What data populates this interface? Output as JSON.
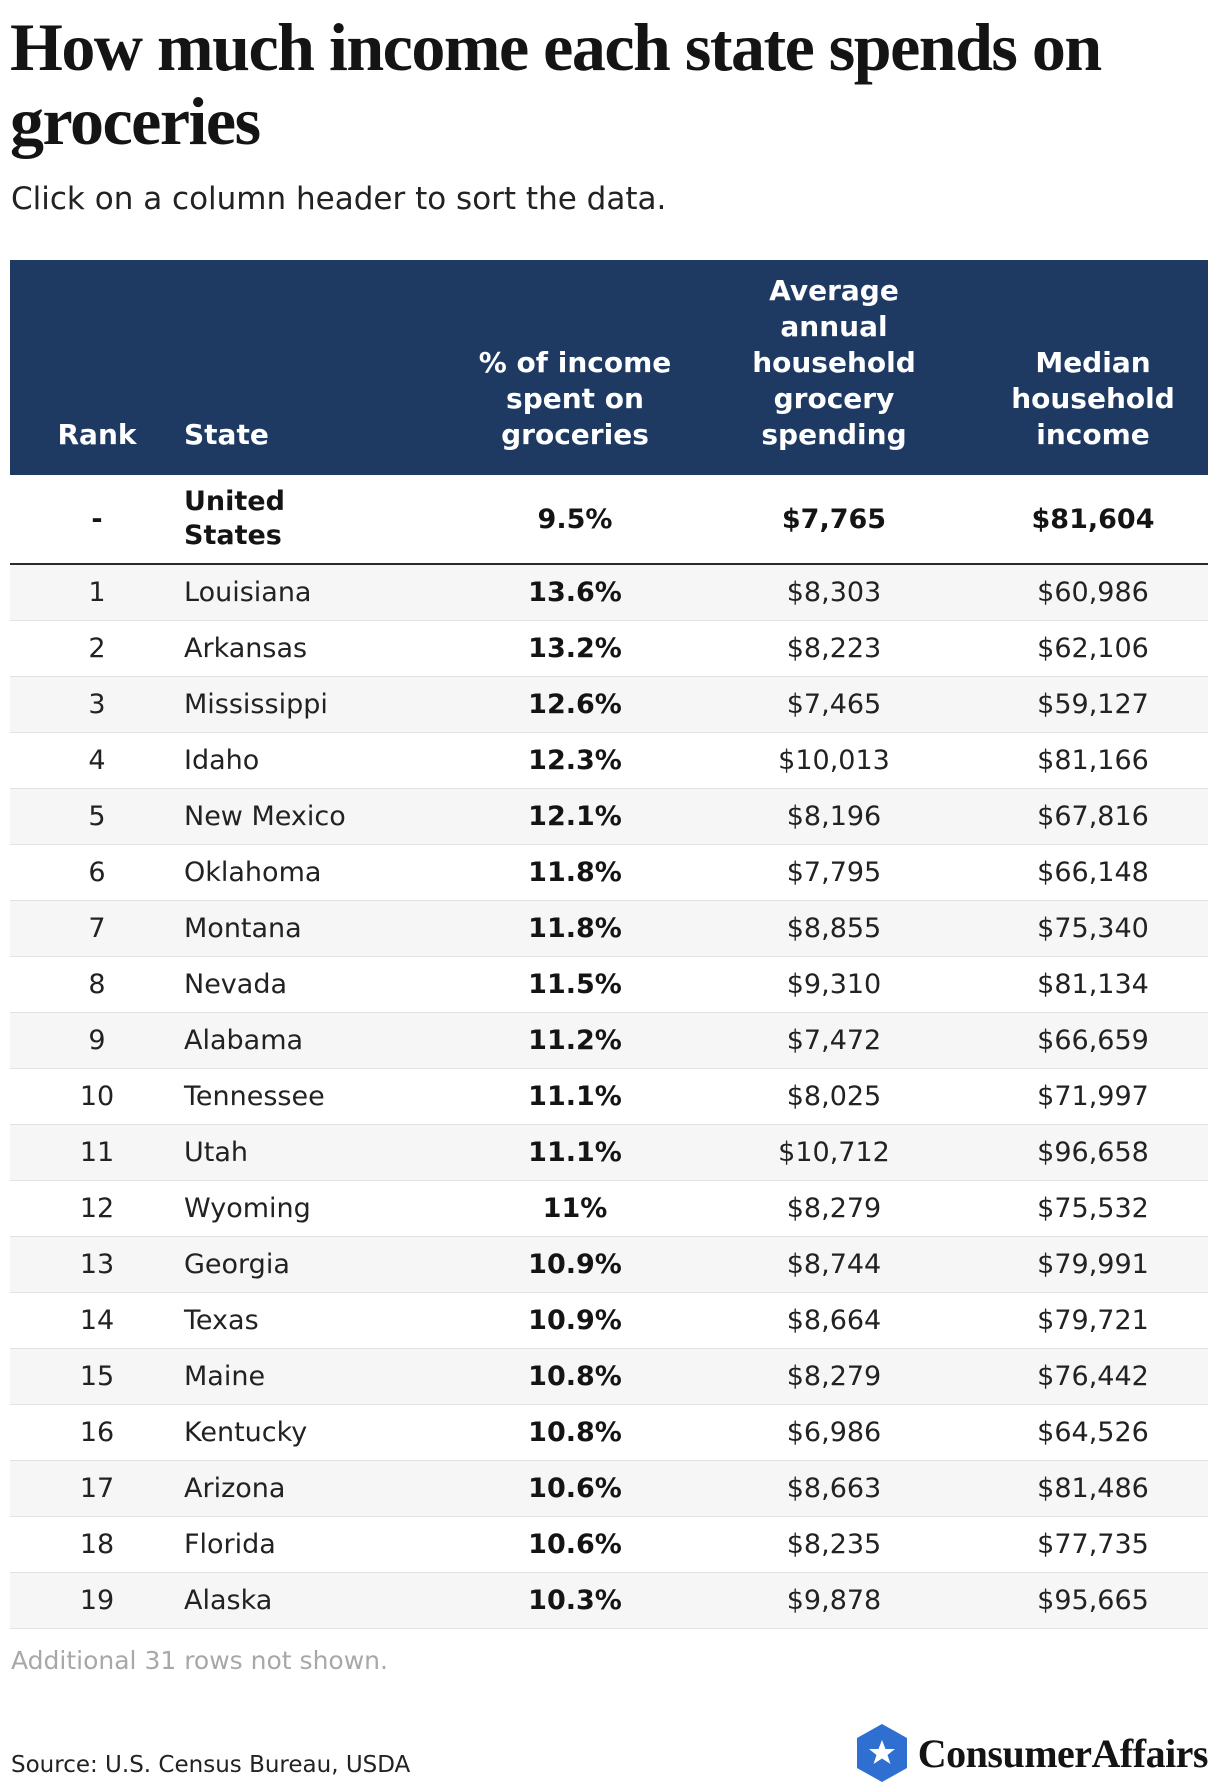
{
  "header": {
    "title": "How much income each state spends on groceries",
    "subtitle": "Click on a column header to sort the data."
  },
  "table": {
    "columns": {
      "rank": "Rank",
      "state": "State",
      "pct": "% of income\nspent on\ngroceries",
      "avg": "Average\nannual\nhousehold\ngrocery\nspending",
      "median": "Median\nhousehold\nincome"
    },
    "us_row": {
      "rank": "-",
      "state": "United\nStates",
      "pct": "9.5%",
      "avg": "$7,765",
      "median": "$81,604"
    },
    "rows": [
      {
        "rank": "1",
        "state": "Louisiana",
        "pct": "13.6%",
        "avg": "$8,303",
        "median": "$60,986"
      },
      {
        "rank": "2",
        "state": "Arkansas",
        "pct": "13.2%",
        "avg": "$8,223",
        "median": "$62,106"
      },
      {
        "rank": "3",
        "state": "Mississippi",
        "pct": "12.6%",
        "avg": "$7,465",
        "median": "$59,127"
      },
      {
        "rank": "4",
        "state": "Idaho",
        "pct": "12.3%",
        "avg": "$10,013",
        "median": "$81,166"
      },
      {
        "rank": "5",
        "state": "New Mexico",
        "pct": "12.1%",
        "avg": "$8,196",
        "median": "$67,816"
      },
      {
        "rank": "6",
        "state": "Oklahoma",
        "pct": "11.8%",
        "avg": "$7,795",
        "median": "$66,148"
      },
      {
        "rank": "7",
        "state": "Montana",
        "pct": "11.8%",
        "avg": "$8,855",
        "median": "$75,340"
      },
      {
        "rank": "8",
        "state": "Nevada",
        "pct": "11.5%",
        "avg": "$9,310",
        "median": "$81,134"
      },
      {
        "rank": "9",
        "state": "Alabama",
        "pct": "11.2%",
        "avg": "$7,472",
        "median": "$66,659"
      },
      {
        "rank": "10",
        "state": "Tennessee",
        "pct": "11.1%",
        "avg": "$8,025",
        "median": "$71,997"
      },
      {
        "rank": "11",
        "state": "Utah",
        "pct": "11.1%",
        "avg": "$10,712",
        "median": "$96,658"
      },
      {
        "rank": "12",
        "state": "Wyoming",
        "pct": "11%",
        "avg": "$8,279",
        "median": "$75,532"
      },
      {
        "rank": "13",
        "state": "Georgia",
        "pct": "10.9%",
        "avg": "$8,744",
        "median": "$79,991"
      },
      {
        "rank": "14",
        "state": "Texas",
        "pct": "10.9%",
        "avg": "$8,664",
        "median": "$79,721"
      },
      {
        "rank": "15",
        "state": "Maine",
        "pct": "10.8%",
        "avg": "$8,279",
        "median": "$76,442"
      },
      {
        "rank": "16",
        "state": "Kentucky",
        "pct": "10.8%",
        "avg": "$6,986",
        "median": "$64,526"
      },
      {
        "rank": "17",
        "state": "Arizona",
        "pct": "10.6%",
        "avg": "$8,663",
        "median": "$81,486"
      },
      {
        "rank": "18",
        "state": "Florida",
        "pct": "10.6%",
        "avg": "$8,235",
        "median": "$77,735"
      },
      {
        "rank": "19",
        "state": "Alaska",
        "pct": "10.3%",
        "avg": "$9,878",
        "median": "$95,665"
      }
    ]
  },
  "footer": {
    "note": "Additional 31 rows not shown.",
    "source": "Source: U.S. Census Bureau, USDA",
    "logo_text": "ConsumerAffairs",
    "logo_icon": "star-shield-icon"
  },
  "colors": {
    "header_bg": "#1e3a63",
    "logo_blue": "#2f6fd1",
    "row_alt": "#f6f6f6"
  }
}
